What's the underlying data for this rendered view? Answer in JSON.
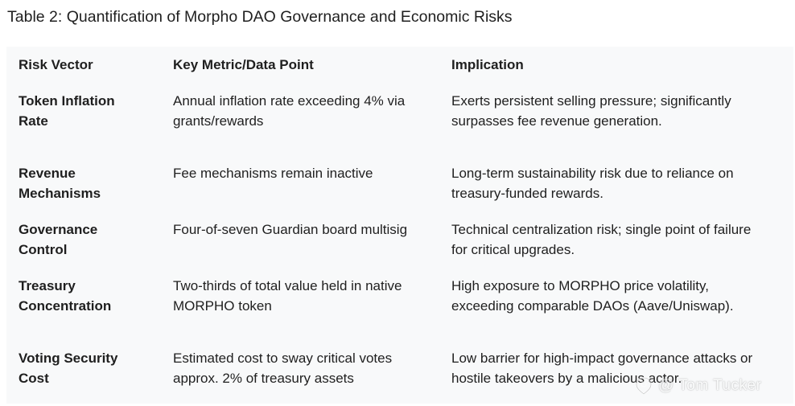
{
  "caption": "Table 2: Quantification of Morpho DAO Governance and Economic Risks",
  "table": {
    "headers": [
      "Risk Vector",
      "Key Metric/Data Point",
      "Implication"
    ],
    "rows": [
      {
        "risk": [
          "Token Inflation",
          "Rate"
        ],
        "metric": [
          "Annual inflation rate exceeding 4% via",
          "grants/rewards"
        ],
        "implication": [
          "Exerts persistent selling pressure; significantly",
          "surpasses fee revenue generation."
        ]
      },
      {
        "risk": [
          "Revenue",
          "Mechanisms"
        ],
        "metric": [
          "Fee mechanisms remain inactive"
        ],
        "implication": [
          "Long-term sustainability risk due to reliance on",
          "treasury-funded rewards."
        ]
      },
      {
        "risk": [
          "Governance",
          "Control"
        ],
        "metric": [
          "Four-of-seven Guardian board multisig"
        ],
        "implication": [
          "Technical centralization risk; single point of failure",
          "for critical upgrades."
        ]
      },
      {
        "risk": [
          "Treasury",
          "Concentration"
        ],
        "metric": [
          "Two-thirds of total value held in native",
          "MORPHO token"
        ],
        "implication": [
          "High exposure to MORPHO price volatility,",
          "exceeding comparable DAOs (Aave/Uniswap)."
        ]
      },
      {
        "risk": [
          "Voting Security",
          "Cost"
        ],
        "metric": [
          "Estimated cost to sway critical votes",
          "approx. 2% of treasury assets"
        ],
        "implication": [
          "Low barrier for high-impact governance attacks or",
          "hostile takeovers by a malicious actor."
        ]
      }
    ]
  },
  "watermark": {
    "icon": "social-logo-icon",
    "text": "@ Tom Tucker"
  }
}
